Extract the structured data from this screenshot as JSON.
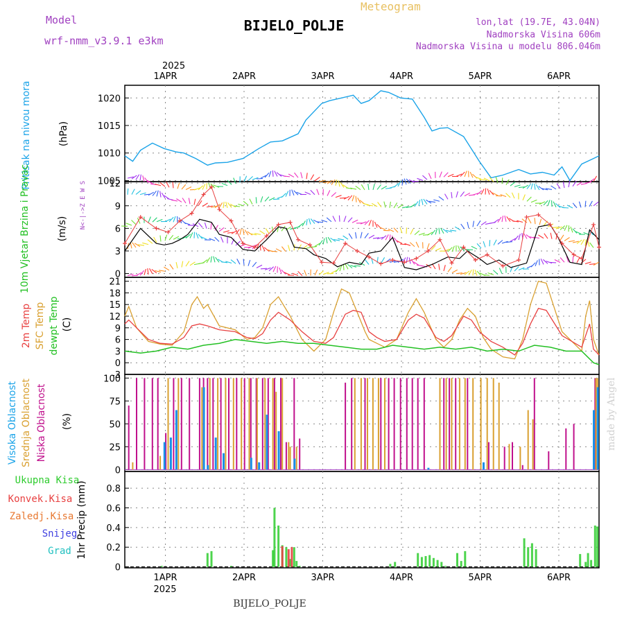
{
  "header": {
    "model_label": "Model",
    "model_name": "wrf-nmm_v3.9.1 e3km",
    "meteogram": "Meteogram",
    "station": "BIJELO_POLJE",
    "lonlat": "lon,lat (19.7E, 43.04N)",
    "altitude": "Nadmorska Visina 606m",
    "model_altitude": "Nadmorska Visina u modelu 806.046m",
    "made_by": "made by Angel",
    "footer_station": "BIJELO_POLJE"
  },
  "colors": {
    "pressure": "#1aa3e8",
    "temp2m": "#e84040",
    "sfc": "#d9a030",
    "dewpt": "#22c022",
    "high_cloud": "#1a8fe8",
    "mid_cloud": "#d9a030",
    "low_cloud": "#c0108c",
    "total_precip": "#2ecc2e",
    "conv_precip": "#e84040",
    "frozen": "#e87830",
    "snow": "#4040e0",
    "grad": "#20c0c0",
    "header_purple": "#a040c0",
    "meteogram_orange": "#e8c060"
  },
  "chart_data": [
    {
      "type": "line",
      "title": "Pritisak na nivou mora",
      "ylabel": "(hPa)",
      "x_unit": "days since 1APR 00UTC",
      "x_range": [
        -0.5,
        5.52
      ],
      "ylim": [
        1004.8,
        1022.3
      ],
      "yticks": [
        1005,
        1010,
        1015,
        1020
      ],
      "top_axis_year": "2025",
      "top_ticks": [
        "1APR",
        "2APR",
        "3APR",
        "4APR",
        "5APR",
        "6APR"
      ],
      "series": [
        {
          "name": "MSLP",
          "x": [
            -0.5,
            -0.4,
            -0.3,
            -0.15,
            0,
            0.15,
            0.25,
            0.4,
            0.55,
            0.65,
            0.8,
            1.0,
            1.2,
            1.35,
            1.5,
            1.7,
            1.8,
            2.0,
            2.1,
            2.25,
            2.4,
            2.5,
            2.6,
            2.75,
            2.85,
            3.0,
            3.15,
            3.3,
            3.4,
            3.5,
            3.6,
            3.8,
            4.0,
            4.15,
            4.3,
            4.5,
            4.65,
            4.8,
            4.95,
            5.05,
            5.15,
            5.3,
            5.45,
            5.52
          ],
          "values": [
            1009.5,
            1008.5,
            1010.5,
            1011.8,
            1010.8,
            1010.2,
            1010.0,
            1009.0,
            1007.8,
            1008.2,
            1008.3,
            1009.0,
            1010.8,
            1012.0,
            1012.2,
            1013.5,
            1016.0,
            1019.0,
            1019.5,
            1020.0,
            1020.5,
            1019.0,
            1019.5,
            1021.3,
            1021.0,
            1020.0,
            1019.8,
            1016.5,
            1014.0,
            1014.5,
            1014.6,
            1013.0,
            1008.5,
            1005.5,
            1006.0,
            1007.0,
            1006.2,
            1006.5,
            1006.0,
            1007.5,
            1005.0,
            1008.0,
            1009.0,
            1009.5
          ]
        }
      ]
    },
    {
      "type": "line",
      "title": "10m Vjetar Brzina i Pravac",
      "ylabel": "(m/s)",
      "direction_legend": "N<-|->Z E W S",
      "x_range": [
        -0.5,
        5.52
      ],
      "ylim": [
        -0.5,
        12.2
      ],
      "yticks": [
        0,
        3,
        6,
        9,
        12
      ],
      "series": [
        {
          "name": "wind speed",
          "x": [
            -0.5,
            -0.3,
            -0.1,
            0,
            0.1,
            0.2,
            0.3,
            0.45,
            0.6,
            0.7,
            0.85,
            1.0,
            1.15,
            1.3,
            1.45,
            1.55,
            1.65,
            1.8,
            1.9,
            2.05,
            2.2,
            2.35,
            2.5,
            2.6,
            2.75,
            2.9,
            3.05,
            3.2,
            3.4,
            3.6,
            3.75,
            3.85,
            4.0,
            4.1,
            4.25,
            4.4,
            4.6,
            4.75,
            4.9,
            5.0,
            5.15,
            5.3,
            5.4,
            5.52
          ],
          "values": [
            3.0,
            6.0,
            4.0,
            3.8,
            4.0,
            4.5,
            5.2,
            7.2,
            6.8,
            5.2,
            4.8,
            3.2,
            3.0,
            4.5,
            6.2,
            6.0,
            3.5,
            3.3,
            2.5,
            2.0,
            0.9,
            1.5,
            1.2,
            2.7,
            3.0,
            4.8,
            0.8,
            0.5,
            1.2,
            2.2,
            2.0,
            3.0,
            2.0,
            1.2,
            1.8,
            0.8,
            1.4,
            6.2,
            6.5,
            4.8,
            1.5,
            1.2,
            5.8,
            4.5
          ]
        },
        {
          "name": "wind gust",
          "x": [
            -0.5,
            -0.3,
            -0.1,
            0.05,
            0.2,
            0.35,
            0.5,
            0.6,
            0.7,
            0.85,
            1.0,
            1.15,
            1.3,
            1.45,
            1.6,
            1.7,
            1.85,
            2.0,
            2.15,
            2.3,
            2.45,
            2.6,
            2.75,
            2.9,
            3.05,
            3.2,
            3.35,
            3.5,
            3.65,
            3.8,
            3.95,
            4.1,
            4.3,
            4.5,
            4.6,
            4.75,
            4.9,
            5.05,
            5.2,
            5.3,
            5.45,
            5.52
          ],
          "values": [
            4.0,
            7.5,
            6.0,
            5.5,
            7.0,
            8.0,
            10.5,
            11.5,
            8.5,
            7.0,
            4.0,
            3.5,
            5.0,
            6.5,
            6.8,
            4.5,
            3.8,
            1.5,
            1.4,
            4.0,
            3.0,
            2.2,
            1.3,
            1.8,
            1.5,
            2.0,
            3.0,
            4.5,
            1.4,
            3.5,
            1.8,
            2.5,
            1.0,
            1.8,
            7.5,
            7.8,
            6.5,
            4.0,
            2.5,
            2.0,
            6.5,
            3.5
          ]
        }
      ]
    },
    {
      "type": "line",
      "title": "2m Temp / SFC Temp / dewpt Temp",
      "ylabel": "(C)",
      "x_range": [
        -0.5,
        5.52
      ],
      "ylim": [
        -3,
        22
      ],
      "yticks": [
        -3,
        0,
        3,
        6,
        9,
        12,
        15,
        18,
        21
      ],
      "series": [
        {
          "name": "2m Temp",
          "x": [
            -0.5,
            -0.45,
            -0.35,
            -0.2,
            -0.05,
            0.1,
            0.25,
            0.35,
            0.45,
            0.55,
            0.7,
            0.9,
            1.05,
            1.15,
            1.25,
            1.35,
            1.45,
            1.6,
            1.75,
            1.9,
            2.05,
            2.15,
            2.3,
            2.4,
            2.5,
            2.6,
            2.7,
            2.8,
            2.95,
            3.1,
            3.2,
            3.3,
            3.45,
            3.55,
            3.65,
            3.8,
            3.9,
            4.0,
            4.15,
            4.3,
            4.45,
            4.55,
            4.65,
            4.75,
            4.85,
            5.05,
            5.3,
            5.4,
            5.45,
            5.52
          ],
          "values": [
            10.0,
            11.0,
            9.0,
            6.0,
            5.0,
            4.8,
            6.5,
            9.5,
            10.0,
            9.5,
            8.5,
            8.0,
            6.5,
            6.2,
            7.5,
            11.0,
            13.0,
            11.0,
            8.0,
            5.5,
            5.0,
            6.5,
            12.5,
            13.5,
            13.0,
            8.0,
            6.5,
            5.5,
            6.0,
            11.0,
            12.5,
            11.5,
            6.5,
            5.5,
            7.0,
            12.0,
            11.0,
            8.0,
            5.5,
            4.0,
            2.0,
            5.0,
            10.0,
            14.0,
            13.5,
            7.0,
            4.0,
            10.0,
            3.5,
            2.0
          ]
        },
        {
          "name": "SFC Temp",
          "x": [
            -0.5,
            -0.45,
            -0.35,
            -0.2,
            -0.05,
            0.1,
            0.25,
            0.35,
            0.42,
            0.5,
            0.55,
            0.7,
            0.9,
            1.05,
            1.15,
            1.25,
            1.35,
            1.45,
            1.6,
            1.75,
            1.9,
            2.05,
            2.15,
            2.25,
            2.35,
            2.45,
            2.55,
            2.6,
            2.7,
            2.8,
            2.95,
            3.1,
            3.2,
            3.3,
            3.45,
            3.55,
            3.65,
            3.75,
            3.85,
            3.95,
            4.05,
            4.15,
            4.3,
            4.45,
            4.55,
            4.65,
            4.75,
            4.85,
            5.05,
            5.3,
            5.35,
            5.4,
            5.45,
            5.52
          ],
          "values": [
            12.0,
            14.5,
            9.0,
            5.5,
            4.8,
            4.5,
            8.0,
            15.0,
            17.0,
            14.0,
            15.0,
            9.5,
            8.5,
            6.0,
            6.5,
            9.0,
            15.0,
            17.0,
            12.0,
            6.0,
            3.0,
            6.0,
            13.0,
            19.0,
            18.0,
            13.0,
            8.0,
            6.0,
            5.0,
            4.0,
            6.0,
            13.0,
            16.5,
            13.0,
            6.0,
            4.0,
            6.0,
            11.0,
            14.0,
            12.0,
            6.5,
            3.5,
            1.5,
            1.0,
            6.0,
            15.0,
            21.0,
            20.5,
            8.0,
            3.0,
            12.0,
            16.0,
            6.0,
            2.0
          ]
        },
        {
          "name": "dewpt Temp",
          "x": [
            -0.5,
            -0.3,
            -0.1,
            0.1,
            0.3,
            0.5,
            0.7,
            0.9,
            1.1,
            1.3,
            1.5,
            1.7,
            1.9,
            2.1,
            2.3,
            2.5,
            2.7,
            2.9,
            3.1,
            3.3,
            3.5,
            3.7,
            3.9,
            4.1,
            4.3,
            4.5,
            4.7,
            4.9,
            5.1,
            5.3,
            5.45,
            5.52
          ],
          "values": [
            3.0,
            2.5,
            3.0,
            4.0,
            3.5,
            4.5,
            5.0,
            6.0,
            5.5,
            5.0,
            5.5,
            5.0,
            5.0,
            4.5,
            4.0,
            3.5,
            3.5,
            4.5,
            4.0,
            3.5,
            4.0,
            3.5,
            4.0,
            3.0,
            3.5,
            3.0,
            4.5,
            4.0,
            3.0,
            3.0,
            0.0,
            -0.5
          ]
        }
      ]
    },
    {
      "type": "bar",
      "title": "Visoka Oblacnost / Srednja Oblacnost / Niska Oblacnost",
      "ylabel": "(%)",
      "x_range": [
        -0.5,
        5.52
      ],
      "ylim": [
        -2,
        104
      ],
      "yticks": [
        0,
        25,
        50,
        75,
        100
      ],
      "series": [
        {
          "name": "Niska Oblacnost",
          "x": [
            -0.45,
            -0.35,
            -0.25,
            -0.15,
            -0.08,
            0.02,
            0.12,
            0.22,
            0.32,
            0.45,
            0.5,
            0.55,
            0.62,
            0.72,
            0.82,
            0.92,
            1.02,
            1.1,
            1.17,
            1.25,
            1.32,
            1.4,
            1.48,
            1.55,
            1.65,
            1.72,
            2.3,
            2.38,
            2.55,
            2.75,
            2.85,
            2.92,
            3.0,
            3.08,
            3.15,
            3.22,
            3.3,
            3.55,
            3.62,
            3.7,
            3.85,
            4.12,
            4.32,
            4.42,
            4.55,
            4.7,
            4.88,
            5.1,
            5.2,
            5.47
          ],
          "values": [
            70,
            100,
            100,
            100,
            100,
            40,
            100,
            100,
            100,
            100,
            100,
            100,
            100,
            100,
            100,
            100,
            100,
            100,
            100,
            100,
            100,
            100,
            100,
            30,
            100,
            34,
            95,
            100,
            100,
            100,
            100,
            100,
            100,
            100,
            100,
            100,
            100,
            100,
            100,
            100,
            100,
            30,
            25,
            30,
            5,
            100,
            20,
            45,
            50,
            100
          ]
        },
        {
          "name": "Srednja Oblacnost",
          "x": [
            -0.4,
            -0.05,
            0.05,
            0.18,
            0.48,
            0.58,
            0.68,
            0.78,
            0.88,
            0.98,
            1.08,
            1.18,
            1.28,
            1.38,
            1.42,
            1.5,
            1.58,
            1.6,
            1.68,
            2.42,
            2.5,
            2.58,
            2.65,
            2.72,
            2.8,
            3.5,
            3.58,
            3.65,
            3.75,
            3.82,
            3.92,
            4.02,
            4.1,
            4.18,
            4.25,
            4.38,
            4.52,
            4.62,
            4.68,
            5.48,
            5.5
          ],
          "values": [
            8,
            15,
            100,
            100,
            90,
            100,
            100,
            100,
            100,
            100,
            100,
            100,
            100,
            100,
            85,
            100,
            30,
            25,
            25,
            100,
            100,
            100,
            100,
            100,
            100,
            100,
            100,
            100,
            100,
            100,
            100,
            100,
            100,
            100,
            95,
            28,
            25,
            65,
            55,
            100,
            100
          ]
        },
        {
          "name": "Visoka Oblacnost",
          "x": [
            0.0,
            0.08,
            0.15,
            0.5,
            0.55,
            0.65,
            0.75,
            1.1,
            1.2,
            1.3,
            1.45,
            1.65,
            3.35,
            4.05,
            5.45,
            5.5
          ],
          "values": [
            30,
            35,
            65,
            90,
            5,
            35,
            18,
            13,
            8,
            60,
            42,
            12,
            2,
            8,
            65,
            90
          ]
        }
      ]
    },
    {
      "type": "bar",
      "title": "1hr Precip",
      "ylabel": "1hr Precip (mm)",
      "legend": [
        "Ukupna Kisa",
        "Konvek.Kisa",
        "Zaledj.Kisa",
        "Snijeg",
        "Grad"
      ],
      "x_range": [
        -0.5,
        5.52
      ],
      "ylim": [
        -0.01,
        0.97
      ],
      "yticks": [
        0,
        0.2,
        0.4,
        0.6,
        0.8
      ],
      "bottom_axis_year": "2025",
      "bottom_ticks": [
        "1APR",
        "2APR",
        "3APR",
        "4APR",
        "5APR",
        "6APR"
      ],
      "series": [
        {
          "name": "Ukupna Kisa",
          "x": [
            -0.03,
            0.55,
            0.6,
            0.85,
            1.38,
            1.4,
            1.45,
            1.5,
            1.55,
            1.6,
            1.65,
            1.68,
            1.72,
            2.87,
            2.93,
            3.22,
            3.27,
            3.32,
            3.37,
            3.42,
            3.47,
            3.52,
            3.57,
            3.72,
            3.77,
            3.82,
            4.57,
            4.62,
            4.67,
            4.72,
            5.28,
            5.35,
            5.38,
            5.42,
            5.47,
            5.5
          ],
          "values": [
            0.01,
            0.14,
            0.16,
            0.01,
            0.17,
            0.6,
            0.42,
            0.22,
            0.2,
            0.08,
            0.2,
            0.06,
            0.01,
            0.03,
            0.05,
            0.14,
            0.1,
            0.11,
            0.12,
            0.09,
            0.07,
            0.05,
            0.01,
            0.14,
            0.06,
            0.16,
            0.29,
            0.2,
            0.24,
            0.18,
            0.13,
            0.05,
            0.14,
            0.07,
            0.42,
            0.41
          ]
        },
        {
          "name": "Konvek.Kisa",
          "x": [
            1.5,
            1.58,
            1.62
          ],
          "values": [
            0.21,
            0.18,
            0.2
          ]
        }
      ]
    }
  ]
}
